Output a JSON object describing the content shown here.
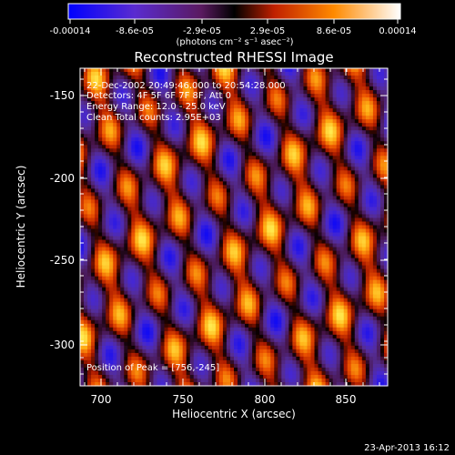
{
  "colorbar": {
    "ticks": [
      "-0.00014",
      "-8.6e-05",
      "-2.9e-05",
      "2.9e-05",
      "8.6e-05",
      "0.00014"
    ],
    "units": "(photons cm⁻² s⁻¹ asec⁻²)"
  },
  "plot": {
    "title": "Reconstructed RHESSI Image",
    "xlabel": "Heliocentric X (arcsec)",
    "ylabel": "Heliocentric Y (arcsec)",
    "xticks": [
      "700",
      "750",
      "800",
      "850"
    ],
    "yticks": [
      "-150",
      "-200",
      "-250",
      "-300"
    ],
    "info": [
      "22-Dec-2002 20:49:46.000 to 20:54:28.000",
      "Detectors: 4F 5F 6F 7F 8F, Att 0",
      "Energy Range: 12.0 - 25.0 keV",
      "Clean     Total counts: 2.95E+03"
    ],
    "peak": "Position of Peak = [756,-245]"
  },
  "footer": {
    "timestamp": "23-Apr-2013 16:12"
  }
}
